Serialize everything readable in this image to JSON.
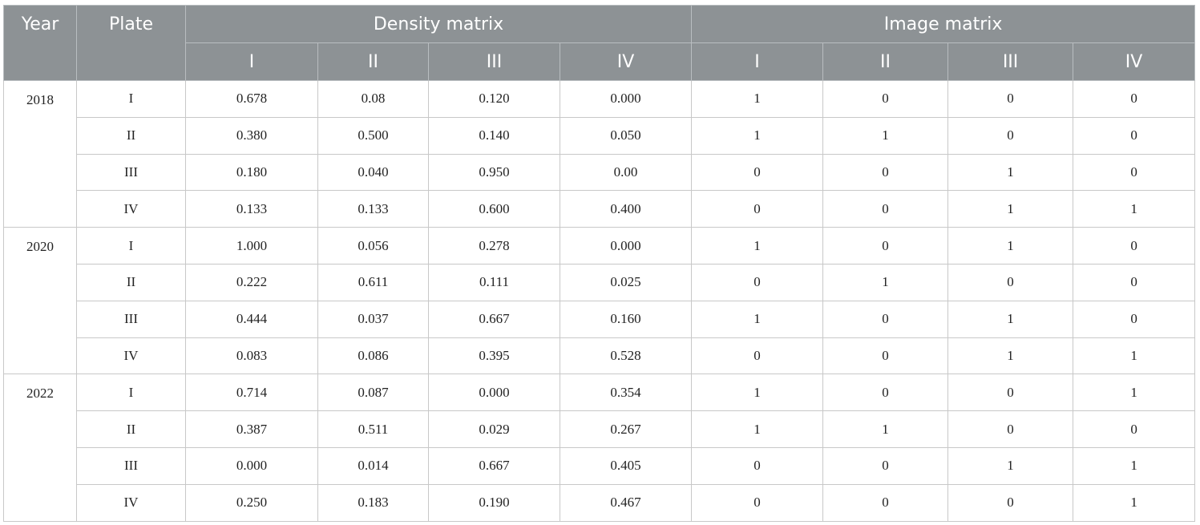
{
  "header": {
    "year": "Year",
    "plate": "Plate",
    "density_group": "Density matrix",
    "image_group": "Image matrix",
    "density_cols": [
      "I",
      "II",
      "III",
      "IV"
    ],
    "image_cols": [
      "I",
      "II",
      "III",
      "IV"
    ]
  },
  "groups": [
    {
      "year": "2018",
      "rows": [
        {
          "plate": "I",
          "density": [
            "0.678",
            "0.08",
            "0.120",
            "0.000"
          ],
          "image": [
            "1",
            "0",
            "0",
            "0"
          ]
        },
        {
          "plate": "II",
          "density": [
            "0.380",
            "0.500",
            "0.140",
            "0.050"
          ],
          "image": [
            "1",
            "1",
            "0",
            "0"
          ]
        },
        {
          "plate": "III",
          "density": [
            "0.180",
            "0.040",
            "0.950",
            "0.00"
          ],
          "image": [
            "0",
            "0",
            "1",
            "0"
          ]
        },
        {
          "plate": "IV",
          "density": [
            "0.133",
            "0.133",
            "0.600",
            "0.400"
          ],
          "image": [
            "0",
            "0",
            "1",
            "1"
          ]
        }
      ]
    },
    {
      "year": "2020",
      "rows": [
        {
          "plate": "I",
          "density": [
            "1.000",
            "0.056",
            "0.278",
            "0.000"
          ],
          "image": [
            "1",
            "0",
            "1",
            "0"
          ]
        },
        {
          "plate": "II",
          "density": [
            "0.222",
            "0.611",
            "0.111",
            "0.025"
          ],
          "image": [
            "0",
            "1",
            "0",
            "0"
          ]
        },
        {
          "plate": "III",
          "density": [
            "0.444",
            "0.037",
            "0.667",
            "0.160"
          ],
          "image": [
            "1",
            "0",
            "1",
            "0"
          ]
        },
        {
          "plate": "IV",
          "density": [
            "0.083",
            "0.086",
            "0.395",
            "0.528"
          ],
          "image": [
            "0",
            "0",
            "1",
            "1"
          ]
        }
      ]
    },
    {
      "year": "2022",
      "rows": [
        {
          "plate": "I",
          "density": [
            "0.714",
            "0.087",
            "0.000",
            "0.354"
          ],
          "image": [
            "1",
            "0",
            "0",
            "1"
          ]
        },
        {
          "plate": "II",
          "density": [
            "0.387",
            "0.511",
            "0.029",
            "0.267"
          ],
          "image": [
            "1",
            "1",
            "0",
            "0"
          ]
        },
        {
          "plate": "III",
          "density": [
            "0.000",
            "0.014",
            "0.667",
            "0.405"
          ],
          "image": [
            "0",
            "0",
            "1",
            "1"
          ]
        },
        {
          "plate": "IV",
          "density": [
            "0.250",
            "0.183",
            "0.190",
            "0.467"
          ],
          "image": [
            "0",
            "0",
            "0",
            "1"
          ]
        }
      ]
    }
  ]
}
